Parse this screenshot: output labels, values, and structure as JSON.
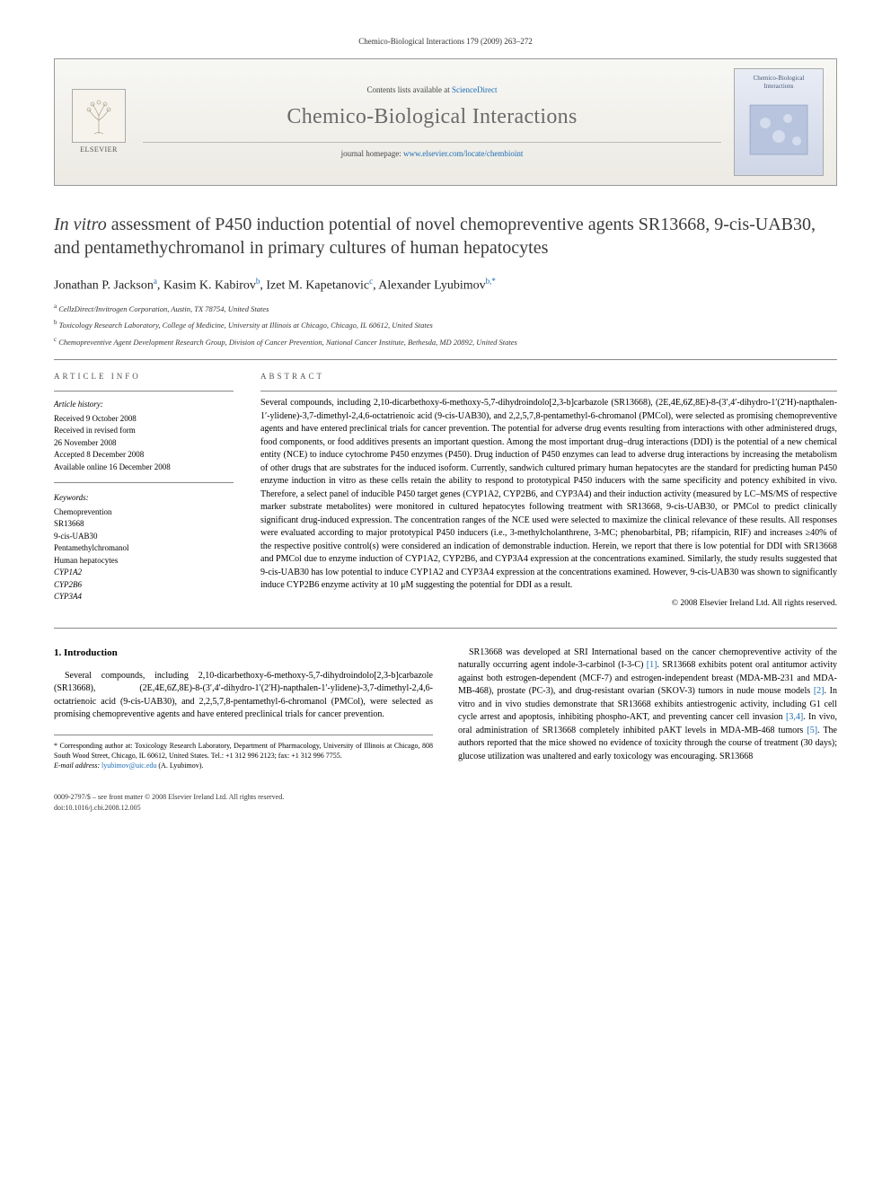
{
  "running_header": "Chemico-Biological Interactions 179 (2009) 263–272",
  "masthead": {
    "contents_prefix": "Contents lists available at ",
    "contents_link": "ScienceDirect",
    "journal_name": "Chemico-Biological Interactions",
    "homepage_prefix": "journal homepage: ",
    "homepage_url": "www.elsevier.com/locate/chembioint",
    "publisher_name": "ELSEVIER",
    "cover_title": "Chemico-Biological Interactions"
  },
  "title": {
    "italic_lead": "In vitro",
    "rest": " assessment of P450 induction potential of novel chemopreventive agents SR13668, 9-cis-UAB30, and pentamethychromanol in primary cultures of human hepatocytes"
  },
  "authors_html": "Jonathan P. Jackson<sup>a</sup>, Kasim K. Kabirov<sup>b</sup>, Izet M. Kapetanovic<sup>c</sup>, Alexander Lyubimov<sup>b,*</sup>",
  "affiliations": [
    {
      "sup": "a",
      "text": "CellzDirect/Invitrogen Corporation, Austin, TX 78754, United States"
    },
    {
      "sup": "b",
      "text": "Toxicology Research Laboratory, College of Medicine, University at Illinois at Chicago, Chicago, IL 60612, United States"
    },
    {
      "sup": "c",
      "text": "Chemopreventive Agent Development Research Group, Division of Cancer Prevention, National Cancer Institute, Bethesda, MD 20892, United States"
    }
  ],
  "article_info": {
    "label": "ARTICLE INFO",
    "history_heading": "Article history:",
    "history": [
      "Received 9 October 2008",
      "Received in revised form",
      "26 November 2008",
      "Accepted 8 December 2008",
      "Available online 16 December 2008"
    ],
    "keywords_heading": "Keywords:",
    "keywords": [
      "Chemoprevention",
      "SR13668",
      "9-cis-UAB30",
      "Pentamethylchromanol",
      "Human hepatocytes",
      "CYP1A2",
      "CYP2B6",
      "CYP3A4"
    ]
  },
  "abstract": {
    "label": "ABSTRACT",
    "text": "Several compounds, including 2,10-dicarbethoxy-6-methoxy-5,7-dihydroindolo[2,3-b]carbazole (SR13668), (2E,4E,6Z,8E)-8-(3′,4′-dihydro-1′(2′H)-napthalen-1′-ylidene)-3,7-dimethyl-2,4,6-octatrienoic acid (9-cis-UAB30), and 2,2,5,7,8-pentamethyl-6-chromanol (PMCol), were selected as promising chemopreventive agents and have entered preclinical trials for cancer prevention. The potential for adverse drug events resulting from interactions with other administered drugs, food components, or food additives presents an important question. Among the most important drug–drug interactions (DDI) is the potential of a new chemical entity (NCE) to induce cytochrome P450 enzymes (P450). Drug induction of P450 enzymes can lead to adverse drug interactions by increasing the metabolism of other drugs that are substrates for the induced isoform. Currently, sandwich cultured primary human hepatocytes are the standard for predicting human P450 enzyme induction in vitro as these cells retain the ability to respond to prototypical P450 inducers with the same specificity and potency exhibited in vivo. Therefore, a select panel of inducible P450 target genes (CYP1A2, CYP2B6, and CYP3A4) and their induction activity (measured by LC–MS/MS of respective marker substrate metabolites) were monitored in cultured hepatocytes following treatment with SR13668, 9-cis-UAB30, or PMCol to predict clinically significant drug-induced expression. The concentration ranges of the NCE used were selected to maximize the clinical relevance of these results. All responses were evaluated according to major prototypical P450 inducers (i.e., 3-methylcholanthrene, 3-MC; phenobarbital, PB; rifampicin, RIF) and increases ≥40% of the respective positive control(s) were considered an indication of demonstrable induction. Herein, we report that there is low potential for DDI with SR13668 and PMCol due to enzyme induction of CYP1A2, CYP2B6, and CYP3A4 expression at the concentrations examined. Similarly, the study results suggested that 9-cis-UAB30 has low potential to induce CYP1A2 and CYP3A4 expression at the concentrations examined. However, 9-cis-UAB30 was shown to significantly induce CYP2B6 enzyme activity at 10 μM suggesting the potential for DDI as a result.",
    "copyright": "© 2008 Elsevier Ireland Ltd. All rights reserved."
  },
  "body": {
    "section_heading": "1. Introduction",
    "para1": "Several compounds, including 2,10-dicarbethoxy-6-methoxy-5,7-dihydroindolo[2,3-b]carbazole (SR13668), (2E,4E,6Z,8E)-8-(3′,4′-dihydro-1′(2′H)-napthalen-1′-ylidene)-3,7-dimethyl-2,4,6-octatrienoic acid (9-cis-UAB30), and 2,2,5,7,8-pentamethyl-6-chromanol (PMCol), were selected as promising chemopreventive agents and have entered preclinical trials for cancer prevention.",
    "para2": "SR13668 was developed at SRI International based on the cancer chemopreventive activity of the naturally occurring agent indole-3-carbinol (I-3-C) [1]. SR13668 exhibits potent oral antitumor activity against both estrogen-dependent (MCF-7) and estrogen-independent breast (MDA-MB-231 and MDA-MB-468), prostate (PC-3), and drug-resistant ovarian (SKOV-3) tumors in nude mouse models [2]. In vitro and in vivo studies demonstrate that SR13668 exhibits antiestrogenic activity, including G1 cell cycle arrest and apoptosis, inhibiting phospho-AKT, and preventing cancer cell invasion [3,4]. In vivo, oral administration of SR13668 completely inhibited pAKT levels in MDA-MB-468 tumors [5]. The authors reported that the mice showed no evidence of toxicity through the course of treatment (30 days); glucose utilization was unaltered and early toxicology was encouraging. SR13668"
  },
  "footnote": {
    "corr_label": "* Corresponding author at: Toxicology Research Laboratory, Department of Pharmacology, University of Illinois at Chicago, 808 South Wood Street, Chicago, IL 60612, United States. Tel.: +1 312 996 2123; fax: +1 312 996 7755.",
    "email_label": "E-mail address:",
    "email": "lyubimov@uic.edu",
    "email_suffix": "(A. Lyubimov)."
  },
  "footer": {
    "issn_line": "0009-2797/$ – see front matter © 2008 Elsevier Ireland Ltd. All rights reserved.",
    "doi_line": "doi:10.1016/j.cbi.2008.12.005"
  },
  "colors": {
    "link": "#1a6bb5",
    "text": "#000000",
    "muted": "#555555",
    "rule": "#888888",
    "masthead_bg_top": "#f7f7f4",
    "masthead_bg_bottom": "#eceae3"
  }
}
